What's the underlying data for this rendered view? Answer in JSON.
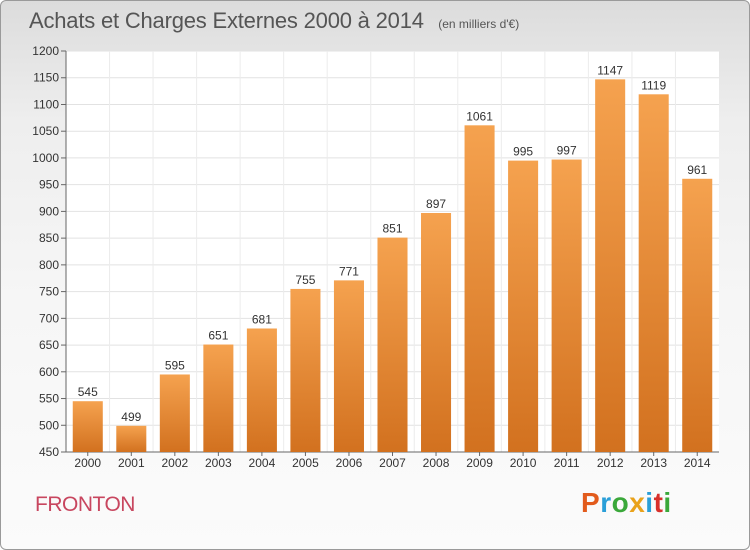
{
  "title": "Achats et Charges Externes 2000 à 2014",
  "unit_note": "(en milliers d'€)",
  "place": "FRONTON",
  "brand": {
    "letters": [
      "P",
      "r",
      "o",
      "x",
      "i",
      "t",
      "i"
    ],
    "colors": [
      "#e25b1c",
      "#2a9fd8",
      "#3aa83a",
      "#e9a21a",
      "#2a9fd8",
      "#d8302b",
      "#3aa83a"
    ]
  },
  "colors": {
    "bar_top": "#f5a24f",
    "bar_bottom": "#d2711f",
    "title": "#555555",
    "place": "#c8465f"
  },
  "chart_data": {
    "type": "bar",
    "title": "Achats et Charges Externes 2000 à 2014",
    "categories": [
      "2000",
      "2001",
      "2002",
      "2003",
      "2004",
      "2005",
      "2006",
      "2007",
      "2008",
      "2009",
      "2010",
      "2011",
      "2012",
      "2013",
      "2014"
    ],
    "values": [
      545,
      499,
      595,
      651,
      681,
      755,
      771,
      851,
      897,
      1061,
      995,
      997,
      1147,
      1119,
      961
    ],
    "ylim": [
      450,
      1200
    ],
    "yticks": [
      450,
      500,
      550,
      600,
      650,
      700,
      750,
      800,
      850,
      900,
      950,
      1000,
      1050,
      1100,
      1150,
      1200
    ],
    "grid": true,
    "xlabel": "",
    "ylabel": ""
  }
}
